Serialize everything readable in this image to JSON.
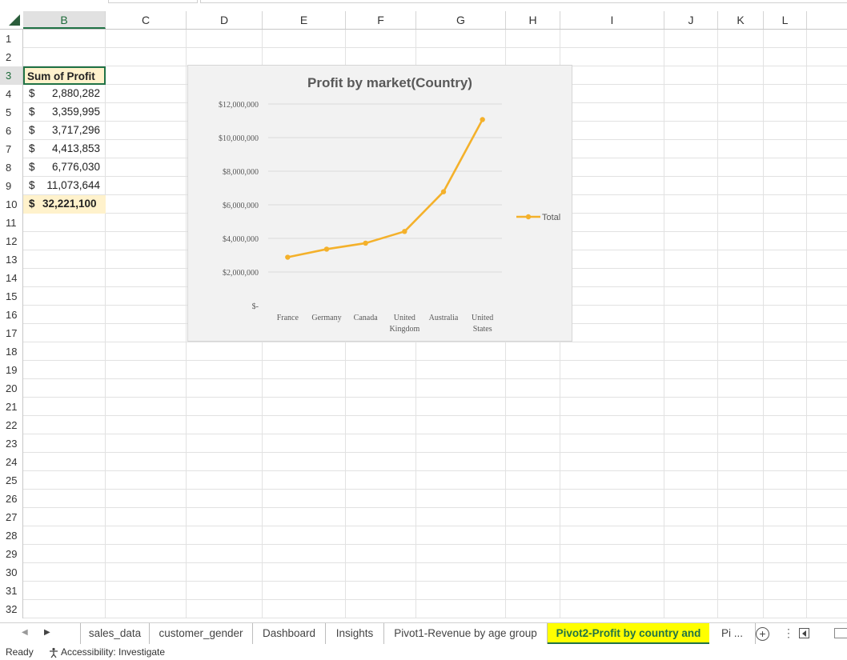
{
  "columns": [
    "B",
    "C",
    "D",
    "E",
    "F",
    "G",
    "H",
    "I",
    "J",
    "K",
    "L"
  ],
  "rows": [
    "1",
    "2",
    "3",
    "4",
    "5",
    "6",
    "7",
    "8",
    "9",
    "10",
    "11",
    "12",
    "13",
    "14",
    "15",
    "16",
    "17",
    "18",
    "19",
    "20",
    "21",
    "22",
    "23",
    "24",
    "25",
    "26",
    "27",
    "28",
    "29",
    "30",
    "31",
    "32"
  ],
  "pivot": {
    "header": "Sum of Profit",
    "values": [
      {
        "currency": "$",
        "amount": "2,880,282"
      },
      {
        "currency": "$",
        "amount": "3,359,995"
      },
      {
        "currency": "$",
        "amount": "3,717,296"
      },
      {
        "currency": "$",
        "amount": "4,413,853"
      },
      {
        "currency": "$",
        "amount": "6,776,030"
      },
      {
        "currency": "$",
        "amount": "11,073,644"
      }
    ],
    "total": {
      "currency": "$",
      "amount": "32,221,100"
    }
  },
  "chart_data": {
    "type": "line",
    "title": "Profit by market(Country)",
    "categories": [
      "France",
      "Germany",
      "Canada",
      "United Kingdom",
      "Australia",
      "United States"
    ],
    "series": [
      {
        "name": "Total",
        "color": "#f4b12b",
        "values": [
          2880282,
          3359995,
          3717296,
          4413853,
          6776030,
          11073644
        ]
      }
    ],
    "y_ticks": [
      "$-",
      "$2,000,000",
      "$4,000,000",
      "$6,000,000",
      "$8,000,000",
      "$10,000,000",
      "$12,000,000"
    ],
    "ylim": [
      0,
      12000000
    ],
    "grid": true,
    "legend_position": "right",
    "xlabel": "",
    "ylabel": ""
  },
  "sheet_tabs": [
    {
      "label": "sales_data",
      "active": false
    },
    {
      "label": "customer_gender",
      "active": false
    },
    {
      "label": "Dashboard",
      "active": false
    },
    {
      "label": "Insights",
      "active": false
    },
    {
      "label": "Pivot1-Revenue by age group",
      "active": false
    },
    {
      "label": "Pivot2-Profit by country and",
      "active": true
    },
    {
      "label": "Pi ...",
      "active": false
    }
  ],
  "add_sheet_label": "+",
  "more_label": "⋮",
  "status": {
    "ready": "Ready",
    "accessibility": "Accessibility: Investigate"
  },
  "icons": {
    "select_all": "select-all-triangle-icon",
    "nav_next": "next-sheet-arrow-icon",
    "add_sheet": "plus-circle-icon",
    "accessibility": "accessibility-icon"
  }
}
